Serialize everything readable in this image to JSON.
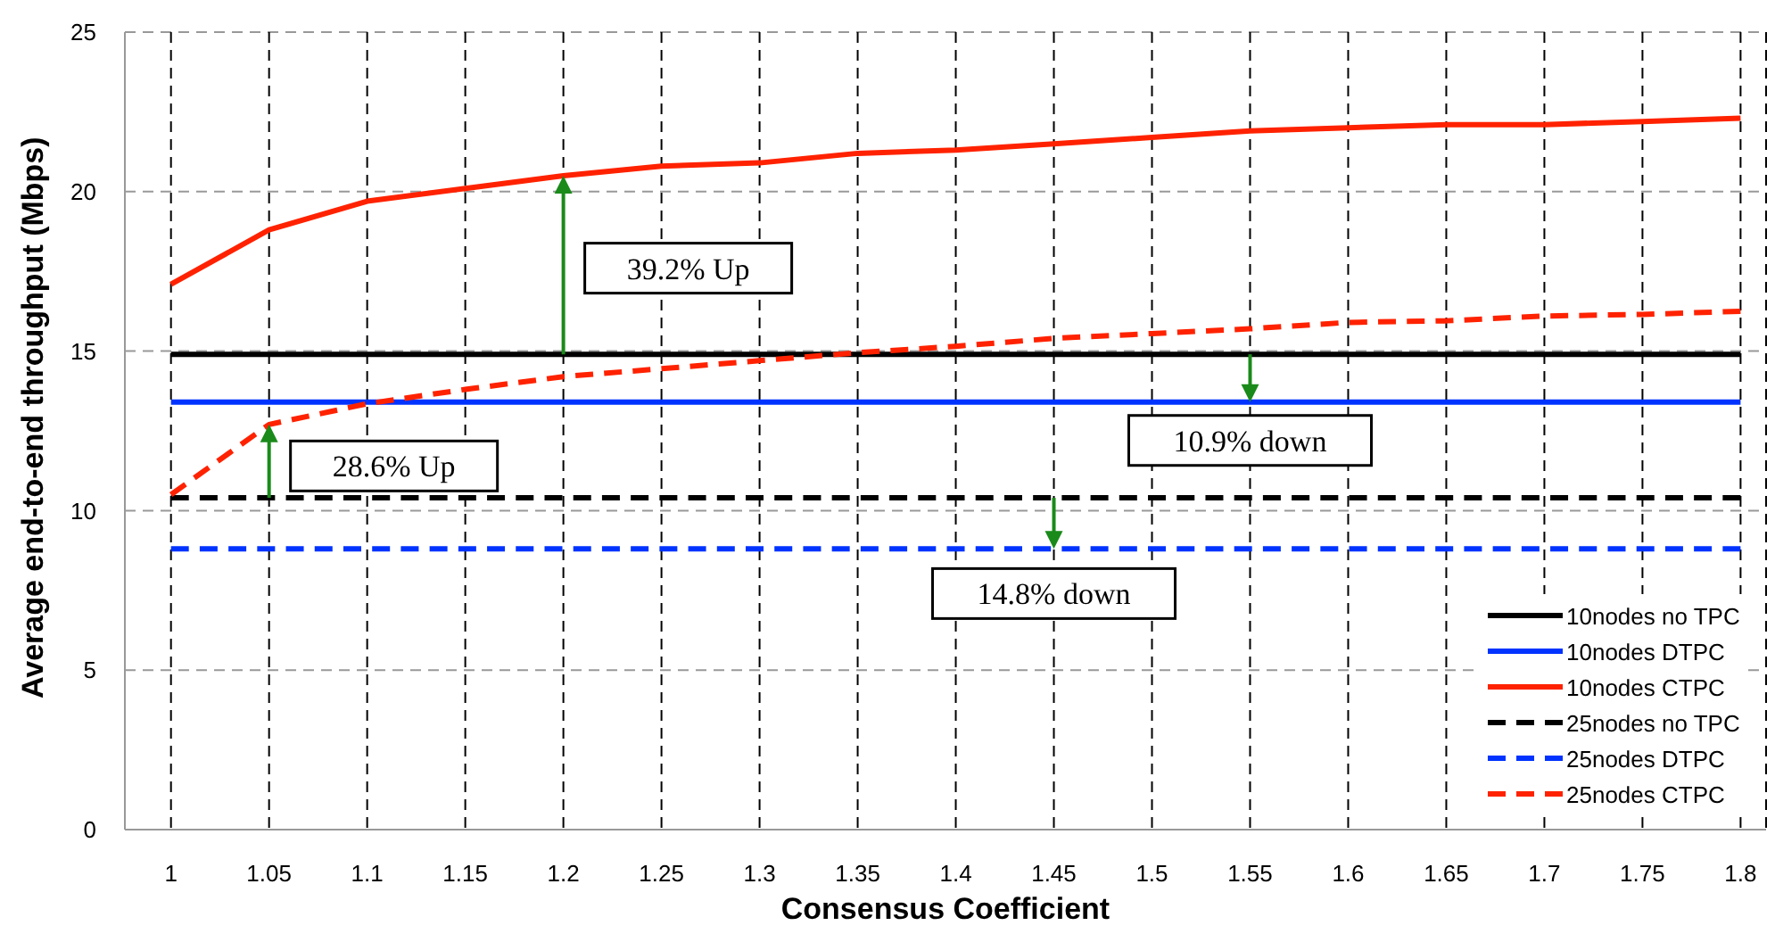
{
  "chart_data": {
    "type": "line",
    "xlabel": "Consensus Coefficient",
    "ylabel": "Average end-to-end throughput (Mbps)",
    "categories": [
      "1",
      "1.05",
      "1.1",
      "1.15",
      "1.2",
      "1.25",
      "1.3",
      "1.35",
      "1.4",
      "1.45",
      "1.5",
      "1.55",
      "1.6",
      "1.65",
      "1.7",
      "1.75",
      "1.8"
    ],
    "ylim": [
      0,
      25
    ],
    "yticks": [
      0,
      5,
      10,
      15,
      20,
      25
    ],
    "grid": true,
    "legend": "bottom right",
    "marker": "none",
    "series": [
      {
        "name": "10nodes no TPC",
        "color": "#000000",
        "line_style": "solid",
        "values": [
          14.9,
          14.9,
          14.9,
          14.9,
          14.9,
          14.9,
          14.9,
          14.9,
          14.9,
          14.9,
          14.9,
          14.9,
          14.9,
          14.9,
          14.9,
          14.9,
          14.9
        ]
      },
      {
        "name": "10nodes DTPC",
        "color": "#0033ff",
        "line_style": "solid",
        "values": [
          13.4,
          13.4,
          13.4,
          13.4,
          13.4,
          13.4,
          13.4,
          13.4,
          13.4,
          13.4,
          13.4,
          13.4,
          13.4,
          13.4,
          13.4,
          13.4,
          13.4
        ]
      },
      {
        "name": "10nodes CTPC",
        "color": "#ff2200",
        "line_style": "solid",
        "values": [
          17.1,
          18.8,
          19.7,
          20.1,
          20.5,
          20.8,
          20.9,
          21.2,
          21.3,
          21.5,
          21.7,
          21.9,
          22.0,
          22.1,
          22.1,
          22.2,
          22.3
        ]
      },
      {
        "name": "25nodes no TPC",
        "color": "#000000",
        "line_style": "dashed",
        "values": [
          10.4,
          10.4,
          10.4,
          10.4,
          10.4,
          10.4,
          10.4,
          10.4,
          10.4,
          10.4,
          10.4,
          10.4,
          10.4,
          10.4,
          10.4,
          10.4,
          10.4
        ]
      },
      {
        "name": "25nodes DTPC",
        "color": "#0033ff",
        "line_style": "dashed",
        "values": [
          8.8,
          8.8,
          8.8,
          8.8,
          8.8,
          8.8,
          8.8,
          8.8,
          8.8,
          8.8,
          8.8,
          8.8,
          8.8,
          8.8,
          8.8,
          8.8,
          8.8
        ]
      },
      {
        "name": "25nodes CTPC",
        "color": "#ff2200",
        "line_style": "dashed",
        "values": [
          10.5,
          12.7,
          13.35,
          13.8,
          14.2,
          14.45,
          14.7,
          14.95,
          15.15,
          15.4,
          15.55,
          15.7,
          15.9,
          15.95,
          16.1,
          16.15,
          16.25
        ]
      }
    ],
    "annotations": [
      "39.2% Up",
      "28.6% Up",
      "10.9% down",
      "14.8% down"
    ]
  }
}
